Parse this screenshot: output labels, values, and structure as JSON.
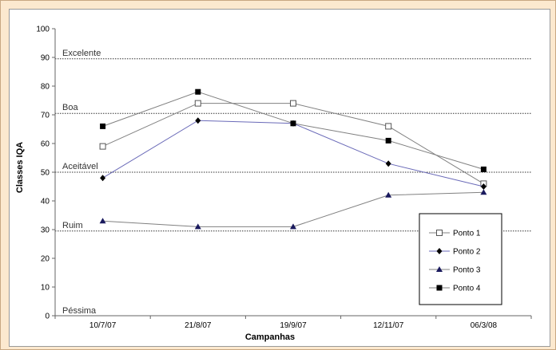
{
  "chart_data": {
    "type": "line",
    "title": "",
    "xlabel": "Campanhas",
    "ylabel": "Classes IQA",
    "categories": [
      "10/7/07",
      "21/8/07",
      "19/9/07",
      "12/11/07",
      "06/3/08"
    ],
    "ylim": [
      0,
      100
    ],
    "yticks": [
      0,
      10,
      20,
      30,
      40,
      50,
      60,
      70,
      80,
      90,
      100
    ],
    "grid": false,
    "legend_position": "bottom-right",
    "series": [
      {
        "name": "Ponto 1",
        "marker": "open-square",
        "color": "#808080",
        "values": [
          59,
          74,
          74,
          66,
          46
        ]
      },
      {
        "name": "Ponto 2",
        "marker": "diamond",
        "color": "#6a6ab8",
        "values": [
          48,
          68,
          67,
          53,
          45
        ]
      },
      {
        "name": "Ponto 3",
        "marker": "triangle",
        "color": "#808080",
        "values": [
          33,
          31,
          31,
          42,
          43
        ]
      },
      {
        "name": "Ponto 4",
        "marker": "filled-square",
        "color": "#808080",
        "values": [
          66,
          78,
          67,
          61,
          51
        ]
      }
    ],
    "class_lines": [
      {
        "label": "Excelente",
        "y": 89.5
      },
      {
        "label": "Boa",
        "y": 70.5
      },
      {
        "label": "Aceitável",
        "y": 50
      },
      {
        "label": "Ruim",
        "y": 29.5
      },
      {
        "label": "Péssima",
        "y": 0
      }
    ]
  }
}
